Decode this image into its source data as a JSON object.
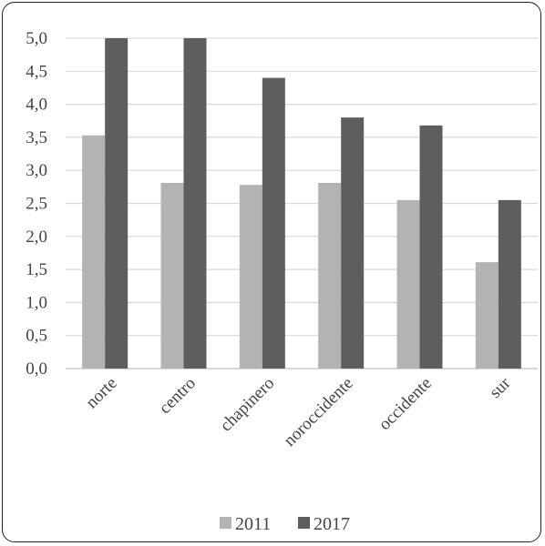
{
  "chart_data": {
    "type": "bar",
    "categories": [
      "norte",
      "centro",
      "chapinero",
      "noroccidente",
      "occidente",
      "sur"
    ],
    "series": [
      {
        "name": "2011",
        "values": [
          3.53,
          2.81,
          2.78,
          2.81,
          2.55,
          1.61
        ],
        "color": "#b3b3b3"
      },
      {
        "name": "2017",
        "values": [
          5.0,
          5.0,
          4.4,
          3.8,
          3.68,
          2.55
        ],
        "color": "#5e5e5e"
      }
    ],
    "y_ticks": [
      "0,0",
      "0,5",
      "1,0",
      "1,5",
      "2,0",
      "2,5",
      "3,0",
      "3,5",
      "4,0",
      "4,5",
      "5,0"
    ],
    "ylim": [
      0,
      5.0
    ],
    "grid": true,
    "legend_position": "bottom"
  }
}
